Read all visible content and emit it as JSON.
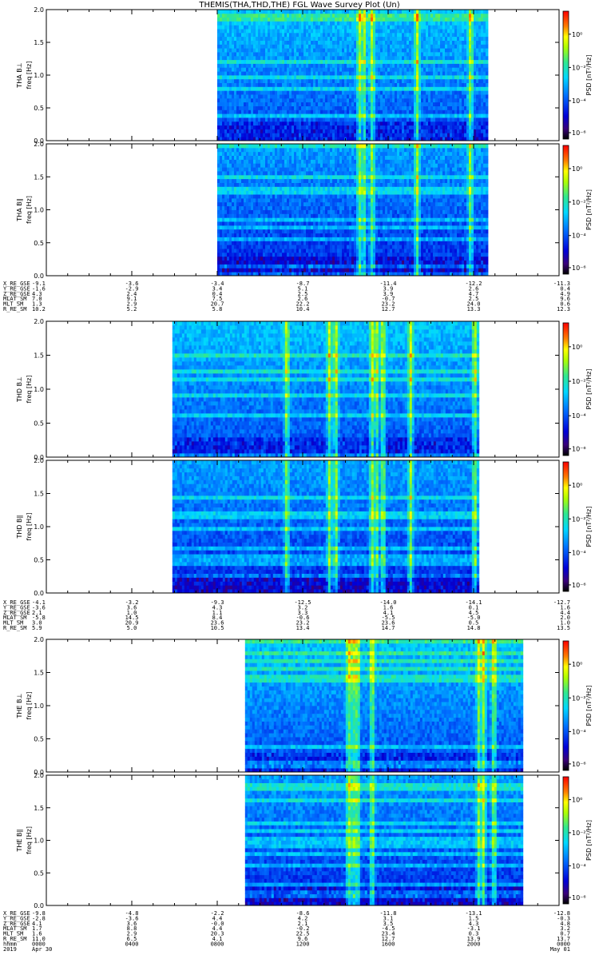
{
  "chart_data": {
    "type": "heatmap",
    "title": "THEMIS(THA,THD,THE) FGL Wave Survey Plot (Un)",
    "yticks": [
      "0.0",
      "0.5",
      "1.0",
      "1.5",
      "2.0"
    ],
    "colorbar_ticks": [
      "10⁰",
      "10⁻²",
      "10⁻⁴",
      "10⁻⁶"
    ],
    "colorbar_label": "PSD [nT²/Hz]",
    "ylim": [
      0,
      2
    ],
    "panels": [
      {
        "probe": "THA",
        "label": "THA B⊥",
        "ylabel": "freq [Hz]",
        "data_start_hour": 8.0,
        "data_end_hour": 20.6,
        "events": [
          14.6,
          14.8,
          15.2,
          17.3,
          19.8
        ]
      },
      {
        "probe": "THA",
        "label": "THA B∥",
        "ylabel": "freq [Hz]",
        "data_start_hour": 8.0,
        "data_end_hour": 20.6,
        "events": [
          14.6,
          14.8,
          15.2,
          17.3,
          19.8
        ]
      },
      {
        "probe": "THD",
        "label": "THD B⊥",
        "ylabel": "freq [Hz]",
        "data_start_hour": 5.9,
        "data_end_hour": 20.2,
        "events": [
          11.2,
          13.2,
          13.5,
          15.2,
          15.4,
          15.7,
          17.0,
          20.0
        ]
      },
      {
        "probe": "THD",
        "label": "THD B∥",
        "ylabel": "freq [Hz]",
        "data_start_hour": 5.9,
        "data_end_hour": 20.2,
        "events": [
          11.2,
          13.2,
          13.5,
          15.2,
          15.4,
          15.7,
          17.0,
          20.0
        ]
      },
      {
        "probe": "THE",
        "label": "THE B⊥",
        "ylabel": "freq [Hz]",
        "data_start_hour": 9.3,
        "data_end_hour": 22.2,
        "events": [
          14.1,
          14.3,
          14.5,
          15.2,
          20.2,
          20.4,
          20.9
        ]
      },
      {
        "probe": "THE",
        "label": "THE B∥",
        "ylabel": "freq [Hz]",
        "data_start_hour": 9.3,
        "data_end_hour": 22.2,
        "events": [
          14.1,
          14.3,
          14.5,
          15.2,
          20.2,
          20.4,
          20.9
        ]
      }
    ],
    "ephemeris_blocks": [
      {
        "rows": [
          {
            "label": "X_RE_GSE",
            "values": [
              "-9.1",
              "-3.6",
              "-3.4",
              "-8.7",
              "-11.4",
              "-12.2",
              "-11.3"
            ]
          },
          {
            "label": "Y_RE_GSE",
            "values": [
              "-1.6",
              "-2.9",
              "3.4",
              "5.1",
              "3.9",
              "2.6",
              "0.4"
            ]
          },
          {
            "label": "Z_RE_GSE",
            "values": [
              "4.3",
              "2.4",
              "0.4",
              "2.5",
              "3.9",
              "4.7",
              "4.9"
            ]
          },
          {
            "label": "MLAT_SM",
            "values": [
              "7.0",
              "9.1",
              "7.5",
              "2.6",
              "-0.7",
              "2.5",
              "9.6"
            ]
          },
          {
            "label": "MLT_SM",
            "values": [
              "1.3",
              "2.9",
              "20.7",
              "22.2",
              "23.2",
              "24.0",
              "0.6"
            ]
          },
          {
            "label": "R_RE_SM",
            "values": [
              "10.2",
              "5.2",
              "5.8",
              "10.4",
              "12.7",
              "13.3",
              "12.3"
            ]
          }
        ]
      },
      {
        "rows": [
          {
            "label": "X_RE_GSE",
            "values": [
              "-4.1",
              "-3.2",
              "-9.3",
              "-12.5",
              "-14.0",
              "-14.1",
              "-12.7"
            ]
          },
          {
            "label": "Y_RE_GSE",
            "values": [
              "-3.6",
              "3.6",
              "4.3",
              "3.2",
              "1.6",
              "0.1",
              "1.6"
            ]
          },
          {
            "label": "Z_RE_GSE",
            "values": [
              "2.1",
              "1.0",
              "1.1",
              "3.3",
              "4.1",
              "4.5",
              "4.4"
            ]
          },
          {
            "label": "MLAT_SM",
            "values": [
              "-5.8",
              "14.5",
              "8.4",
              "-0.6",
              "-5.5",
              "-5.0",
              "2.0"
            ]
          },
          {
            "label": "MLT_SM",
            "values": [
              "3.0",
              "20.9",
              "23.6",
              "23.2",
              "23.6",
              "0.5",
              "1.0"
            ]
          },
          {
            "label": "R_RE_SM",
            "values": [
              "5.9",
              "5.0",
              "10.5",
              "13.4",
              "14.7",
              "14.8",
              "13.5"
            ]
          }
        ]
      },
      {
        "rows": [
          {
            "label": "X_RE_GSE",
            "values": [
              "-9.8",
              "-4.8",
              "-2.2",
              "-8.6",
              "-11.8",
              "-13.1",
              "-12.8"
            ]
          },
          {
            "label": "Y_RE_GSE",
            "values": [
              "-2.8",
              "-3.6",
              "4.4",
              "4.2",
              "3.1",
              "1.5",
              "-0.3"
            ]
          },
          {
            "label": "Z_RE_GSE",
            "values": [
              "4.1",
              "3.6",
              "-0.0",
              "2.1",
              "3.5",
              "4.3",
              "4.8"
            ]
          },
          {
            "label": "MLAT_SM",
            "values": [
              "1.7",
              "8.8",
              "4.4",
              "-0.2",
              "-4.5",
              "-3.1",
              "3.2"
            ]
          },
          {
            "label": "MLT_SM",
            "values": [
              "1.6",
              "2.9",
              "20.3",
              "22.5",
              "23.4",
              "0.3",
              "0.7"
            ]
          },
          {
            "label": "R_RE_SM",
            "values": [
              "11.0",
              "6.5",
              "4.1",
              "9.6",
              "12.7",
              "13.9",
              "13.7"
            ]
          },
          {
            "label": "hhmm",
            "values": [
              "0000",
              "0400",
              "0800",
              "1200",
              "1600",
              "2000",
              "0000"
            ]
          },
          {
            "label": "2019",
            "values": [
              "Apr 30",
              "",
              "",
              "",
              "",
              "",
              "May 01"
            ]
          }
        ]
      }
    ]
  }
}
